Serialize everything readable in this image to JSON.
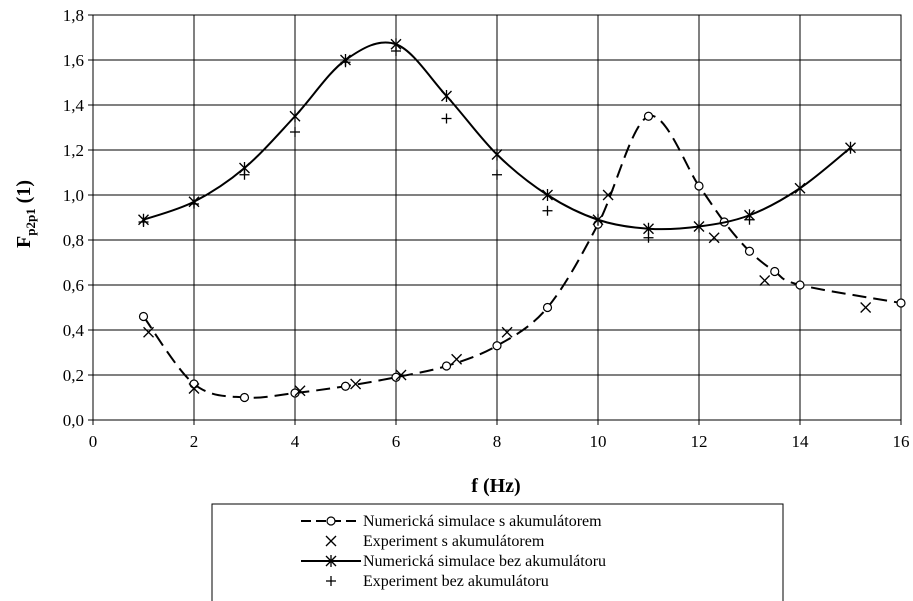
{
  "chart_data": {
    "type": "line",
    "xlabel": "f (Hz)",
    "ylabel_main": "F",
    "ylabel_sub": "p2p1",
    "ylabel_suffix": " (1)",
    "xlim": [
      0,
      16
    ],
    "ylim": [
      0,
      1.8
    ],
    "xticks": [
      0,
      2,
      4,
      6,
      8,
      10,
      12,
      14,
      16
    ],
    "yticks": [
      0,
      0.2,
      0.4,
      0.6,
      0.8,
      1.0,
      1.2,
      1.4,
      1.6,
      1.8
    ],
    "xtick_labels": [
      "0",
      "2",
      "4",
      "6",
      "8",
      "10",
      "12",
      "14",
      "16"
    ],
    "ytick_labels": [
      "0,0",
      "0,2",
      "0,4",
      "0,6",
      "0,8",
      "1,0",
      "1,2",
      "1,4",
      "1,6",
      "1,8"
    ],
    "grid": true,
    "legend_position": "bottom",
    "series": [
      {
        "name": "Numerická simulace s akumulátorem",
        "style": "dashed-line-circle",
        "x": [
          1,
          2,
          3,
          4,
          5,
          6,
          7,
          8,
          9,
          10,
          11,
          12,
          12.5,
          13,
          13.5,
          14,
          16
        ],
        "y": [
          0.46,
          0.16,
          0.1,
          0.12,
          0.15,
          0.19,
          0.24,
          0.33,
          0.5,
          0.87,
          1.35,
          1.04,
          0.88,
          0.75,
          0.66,
          0.6,
          0.52
        ]
      },
      {
        "name": "Experiment s akumulátorem",
        "style": "marker-x",
        "x": [
          1.1,
          2.0,
          4.1,
          5.2,
          6.1,
          7.2,
          8.2,
          10.2,
          12.3,
          13.3,
          15.3
        ],
        "y": [
          0.39,
          0.14,
          0.13,
          0.16,
          0.2,
          0.27,
          0.39,
          1.0,
          0.81,
          0.62,
          0.5
        ]
      },
      {
        "name": "Numerická simulace bez akumulátoru",
        "style": "solid-line-asterisk",
        "x": [
          1,
          2,
          3,
          4,
          5,
          6,
          7,
          8,
          9,
          10,
          11,
          12,
          13,
          14,
          15
        ],
        "y": [
          0.89,
          0.97,
          1.12,
          1.35,
          1.6,
          1.67,
          1.44,
          1.18,
          1.0,
          0.89,
          0.85,
          0.86,
          0.91,
          1.03,
          1.21
        ]
      },
      {
        "name": "Experiment bez akumulátoru",
        "style": "marker-plus",
        "x": [
          1,
          2,
          3,
          4,
          5,
          6,
          7,
          8,
          9,
          11,
          13
        ],
        "y": [
          0.88,
          0.96,
          1.09,
          1.28,
          1.59,
          1.64,
          1.34,
          1.09,
          0.93,
          0.81,
          0.89
        ]
      }
    ]
  }
}
